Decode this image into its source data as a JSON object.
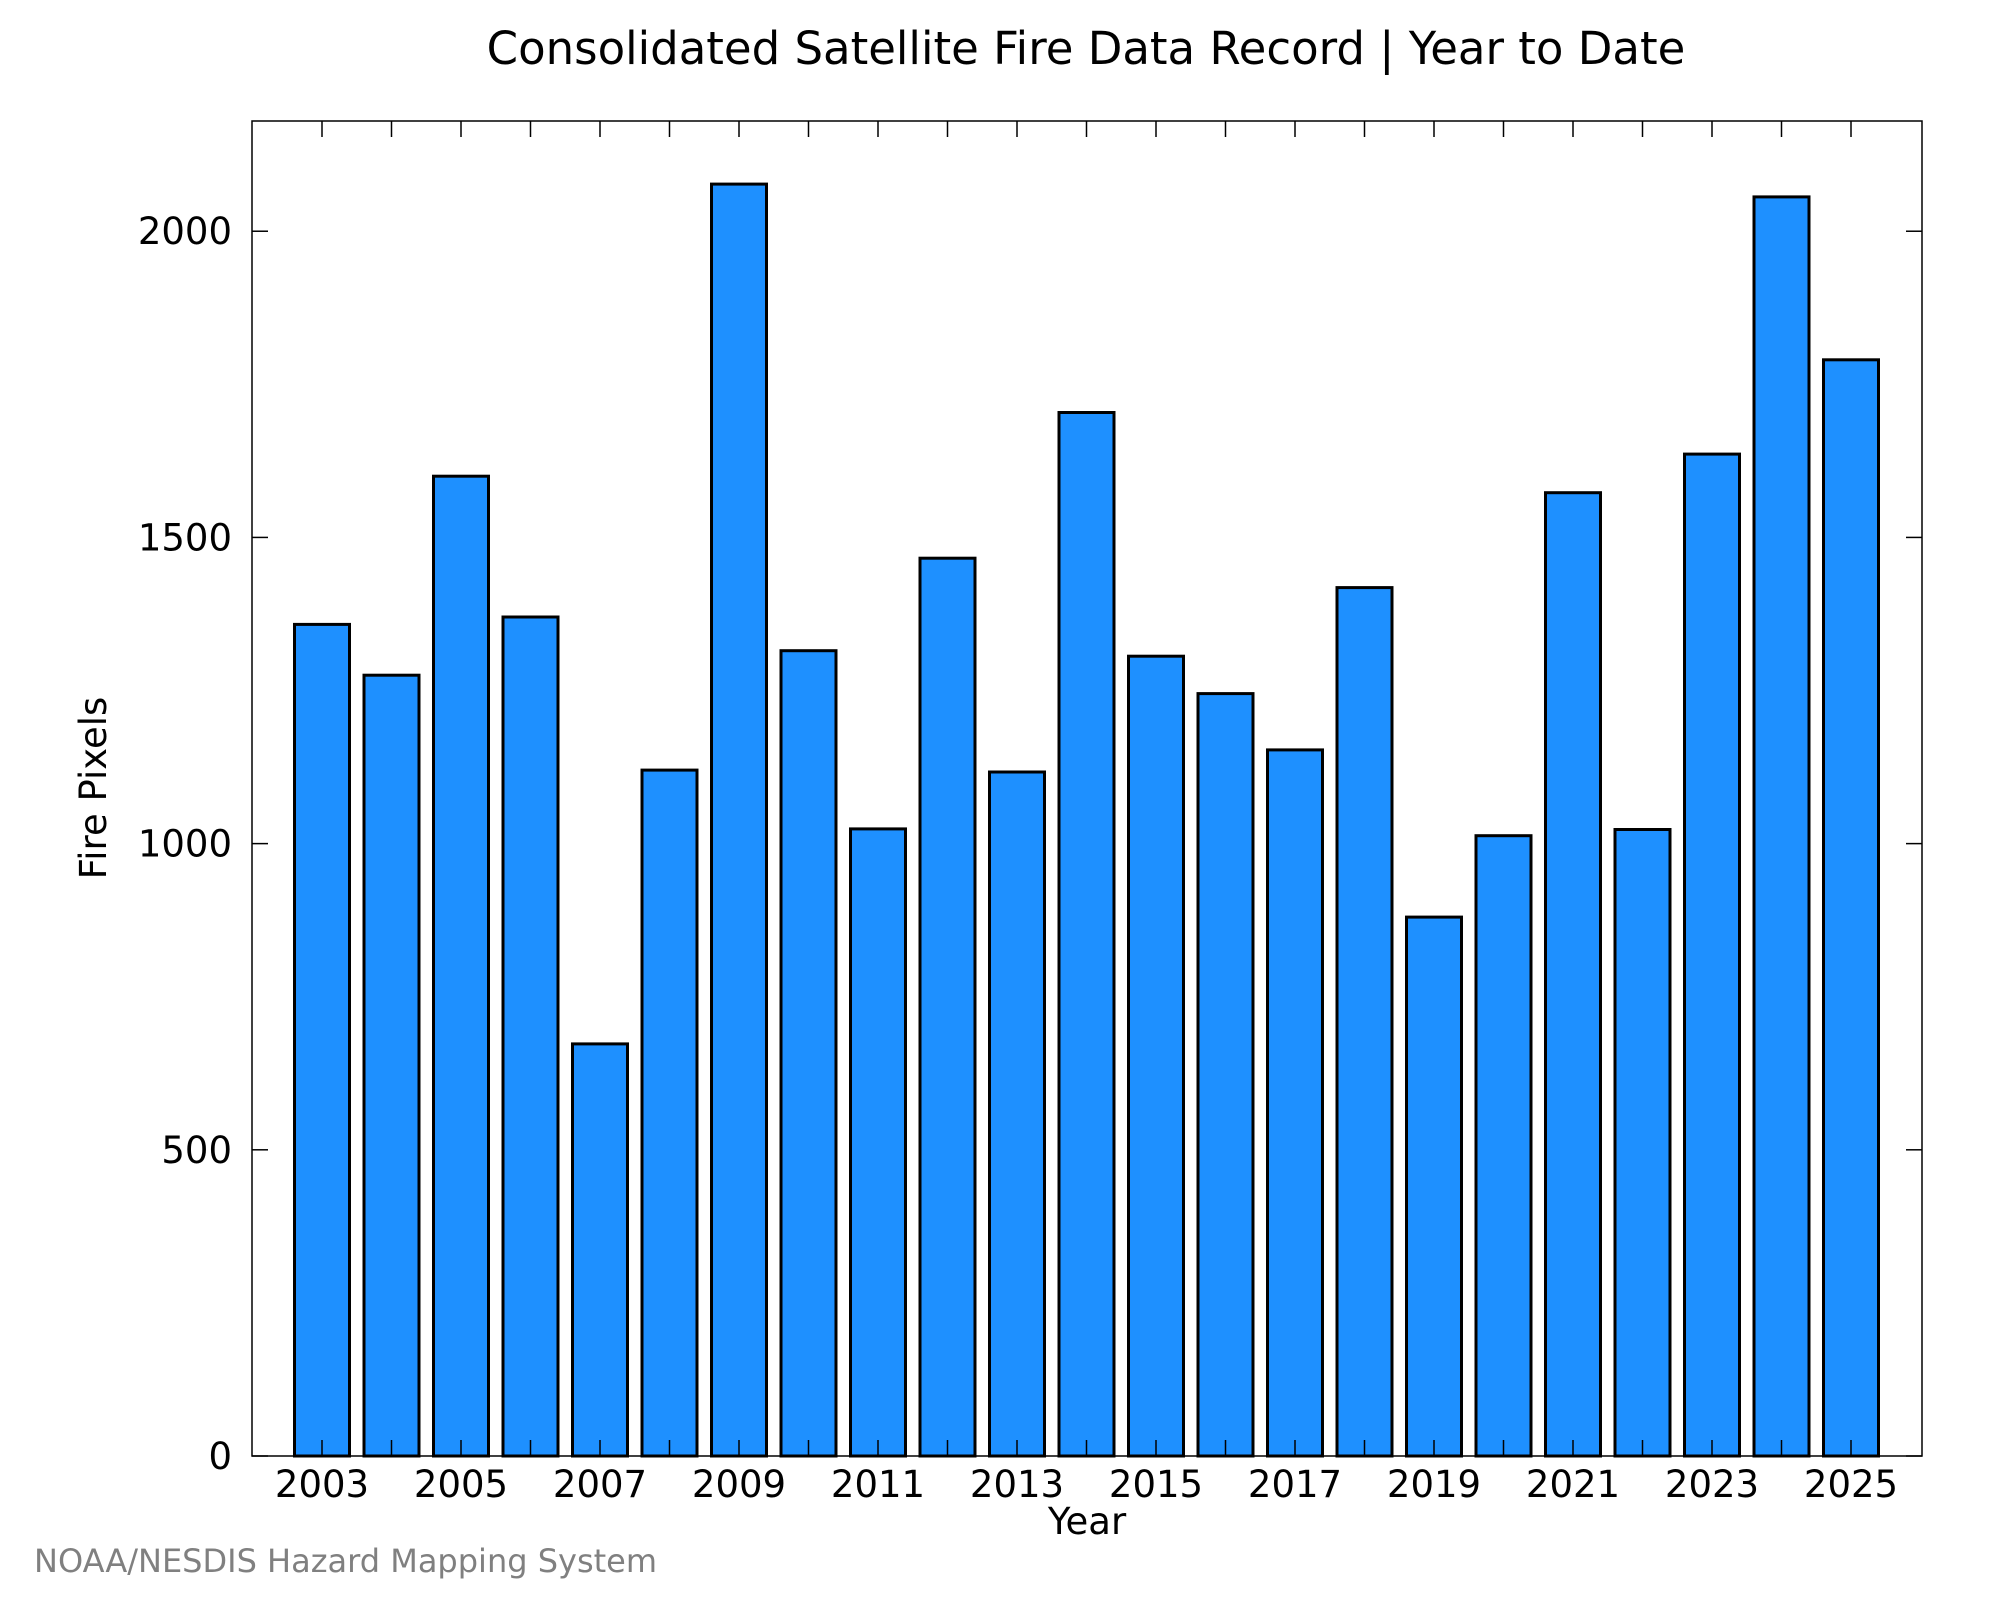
{
  "chart_data": {
    "type": "bar",
    "title": "Consolidated Satellite Fire Data Record | Year to Date",
    "xlabel": "Year",
    "ylabel": "Fire Pixels",
    "categories": [
      "2003",
      "2004",
      "2005",
      "2006",
      "2007",
      "2008",
      "2009",
      "2010",
      "2011",
      "2012",
      "2013",
      "2014",
      "2015",
      "2016",
      "2017",
      "2018",
      "2019",
      "2020",
      "2021",
      "2022",
      "2023",
      "2024",
      "2025"
    ],
    "values": [
      1358,
      1275,
      1600,
      1370,
      673,
      1120,
      2077,
      1315,
      1024,
      1466,
      1117,
      1704,
      1306,
      1245,
      1153,
      1418,
      880,
      1013,
      1573,
      1023,
      1636,
      2056,
      1790
    ],
    "x_tick_labels": [
      "2003",
      "2005",
      "2007",
      "2009",
      "2011",
      "2013",
      "2015",
      "2017",
      "2019",
      "2021",
      "2023",
      "2025"
    ],
    "y_ticks": [
      0,
      500,
      1000,
      1500,
      2000
    ],
    "ylim": [
      0,
      2180
    ],
    "bar_color": "#1e90ff",
    "bar_edge_color": "#000000",
    "grid": false,
    "legend": "none"
  },
  "credit": "NOAA/NESDIS Hazard Mapping System"
}
